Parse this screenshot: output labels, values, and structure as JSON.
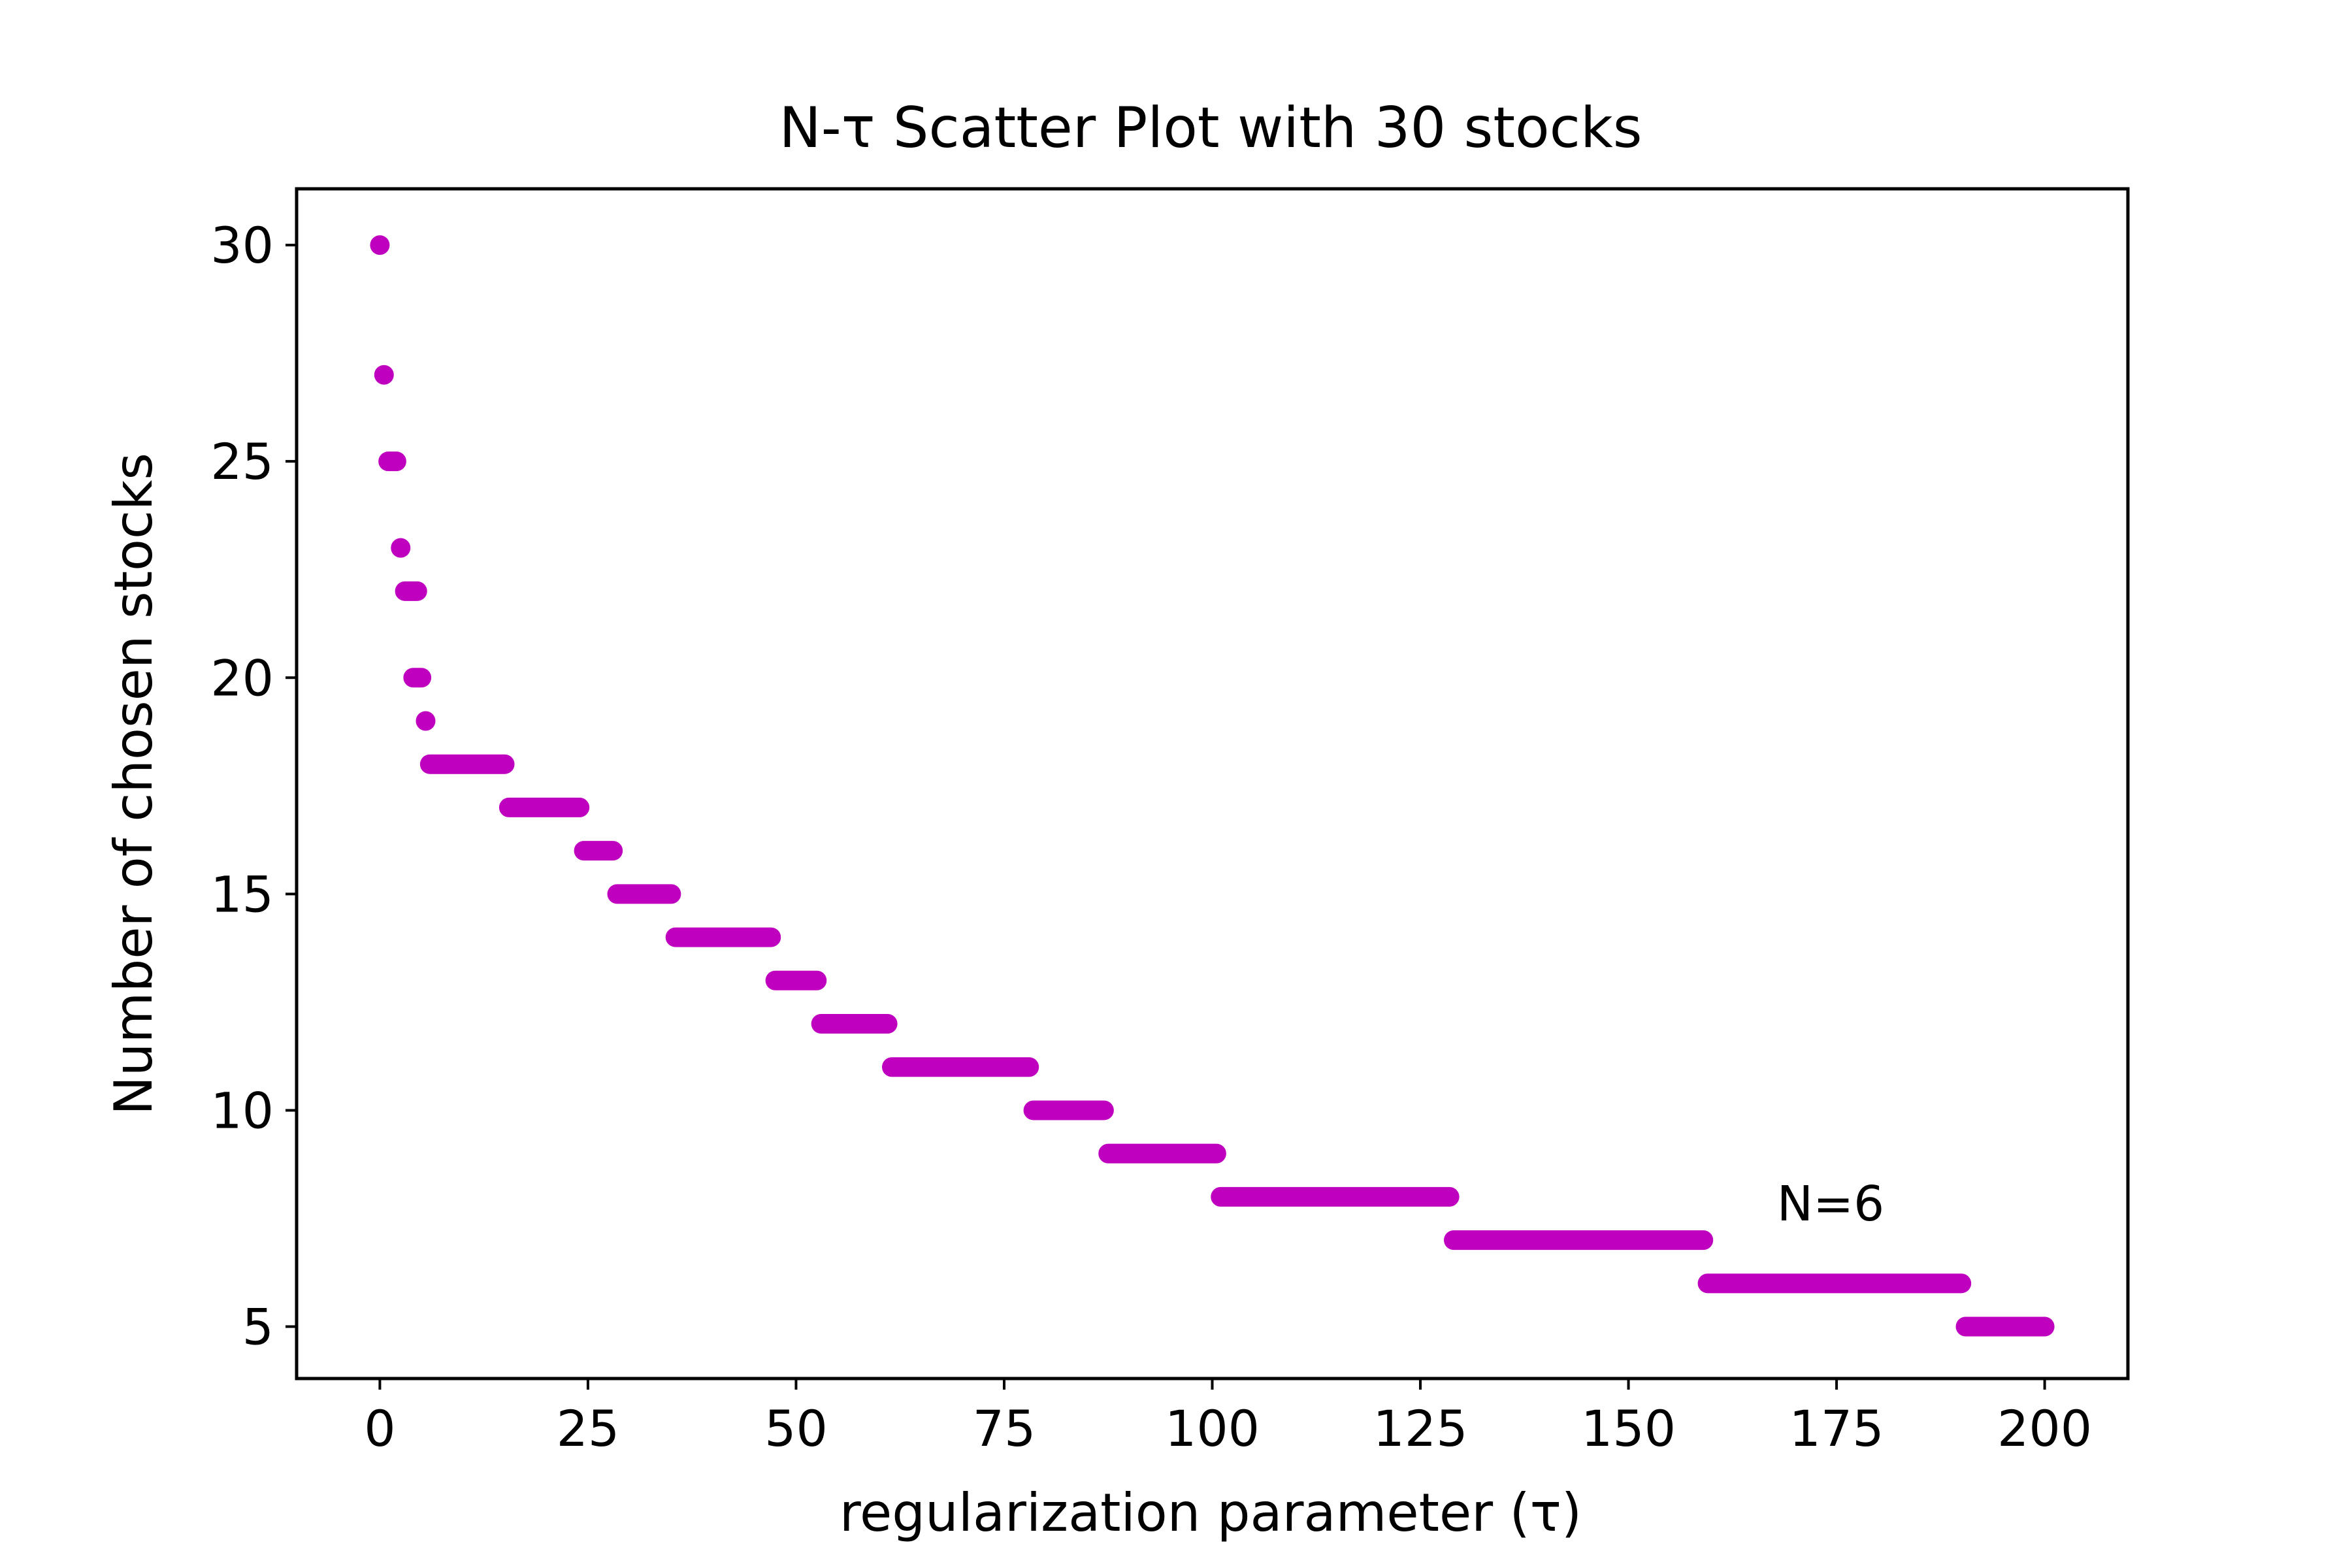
{
  "chart_data": {
    "type": "scatter",
    "title": "N-τ Scatter Plot with 30 stocks",
    "xlabel": "regularization parameter (τ)",
    "ylabel": "Number of chosen stocks",
    "xlim": [
      -10,
      210
    ],
    "ylim": [
      3.8,
      31.3
    ],
    "xticks": [
      0,
      25,
      50,
      75,
      100,
      125,
      150,
      175,
      200
    ],
    "yticks": [
      5,
      10,
      15,
      20,
      25,
      30
    ],
    "grid": false,
    "marker_color": "#bf00bf",
    "annotation": {
      "text": "N=6",
      "x": 174,
      "y": 7.3
    },
    "segments": [
      {
        "x_start": 0,
        "x_end": 0,
        "y": 30
      },
      {
        "x_start": 0.5,
        "x_end": 0.5,
        "y": 27
      },
      {
        "x_start": 1,
        "x_end": 2,
        "y": 25
      },
      {
        "x_start": 2.5,
        "x_end": 2.5,
        "y": 23
      },
      {
        "x_start": 3,
        "x_end": 4.5,
        "y": 22
      },
      {
        "x_start": 4,
        "x_end": 5,
        "y": 20
      },
      {
        "x_start": 5.5,
        "x_end": 5.5,
        "y": 19
      },
      {
        "x_start": 6,
        "x_end": 15,
        "y": 18
      },
      {
        "x_start": 15.5,
        "x_end": 24,
        "y": 17
      },
      {
        "x_start": 24.5,
        "x_end": 28,
        "y": 16
      },
      {
        "x_start": 28.5,
        "x_end": 35,
        "y": 15
      },
      {
        "x_start": 35.5,
        "x_end": 47,
        "y": 14
      },
      {
        "x_start": 47.5,
        "x_end": 52.5,
        "y": 13
      },
      {
        "x_start": 53,
        "x_end": 61,
        "y": 12
      },
      {
        "x_start": 61.5,
        "x_end": 78,
        "y": 11
      },
      {
        "x_start": 78.5,
        "x_end": 87,
        "y": 10
      },
      {
        "x_start": 87.5,
        "x_end": 100.5,
        "y": 9
      },
      {
        "x_start": 101,
        "x_end": 128.5,
        "y": 8
      },
      {
        "x_start": 129,
        "x_end": 159,
        "y": 7
      },
      {
        "x_start": 159.5,
        "x_end": 190,
        "y": 6
      },
      {
        "x_start": 190.5,
        "x_end": 200,
        "y": 5
      }
    ]
  }
}
